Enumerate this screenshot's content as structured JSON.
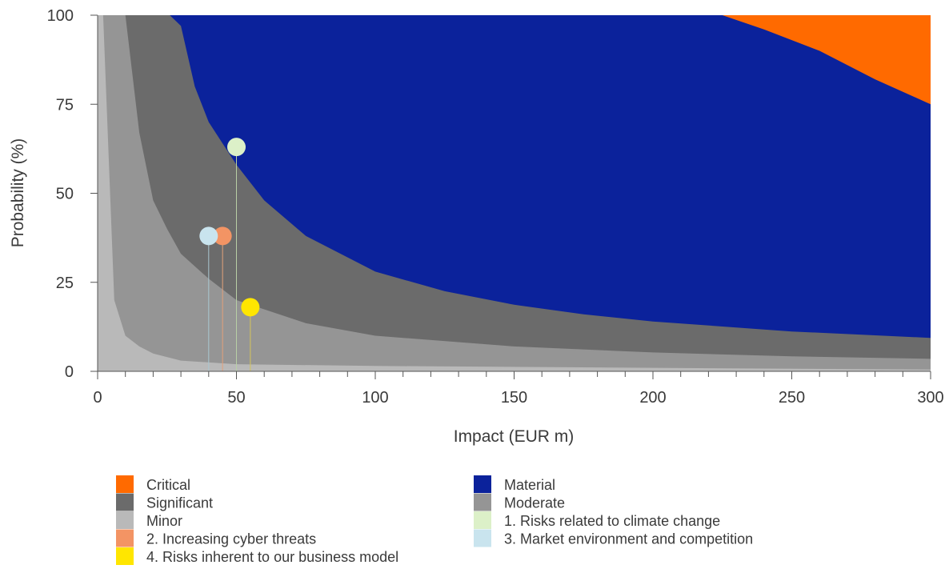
{
  "chart_data": {
    "type": "area",
    "title": "",
    "xlabel": "Impact (EUR m)",
    "ylabel": "Probability (%)",
    "xlim": [
      0,
      300
    ],
    "ylim": [
      0,
      100
    ],
    "x_ticks": [
      "0",
      "50",
      "100",
      "150",
      "200",
      "250",
      "300"
    ],
    "y_ticks": [
      "0",
      "25",
      "50",
      "75",
      "100"
    ],
    "x_minor_step": 10,
    "grid": false,
    "legend_position": "bottom",
    "zones": [
      {
        "name": "Minor",
        "color": "#b9b9b9"
      },
      {
        "name": "Moderate",
        "color": "#959595"
      },
      {
        "name": "Significant",
        "color": "#6b6b6b"
      },
      {
        "name": "Material",
        "color": "#0b229b"
      },
      {
        "name": "Critical",
        "color": "#ff6a00"
      }
    ],
    "boundaries": [
      {
        "between": [
          "Minor",
          "Moderate"
        ],
        "points": [
          [
            0,
            100
          ],
          [
            2,
            100
          ],
          [
            6,
            20
          ],
          [
            10,
            10
          ],
          [
            15,
            7
          ],
          [
            20,
            5
          ],
          [
            30,
            3
          ],
          [
            50,
            2
          ],
          [
            100,
            1.5
          ],
          [
            200,
            1
          ],
          [
            300,
            0.5
          ]
        ]
      },
      {
        "between": [
          "Moderate",
          "Significant"
        ],
        "points": [
          [
            0,
            100
          ],
          [
            10,
            100
          ],
          [
            15,
            67
          ],
          [
            20,
            48
          ],
          [
            25,
            40
          ],
          [
            30,
            33
          ],
          [
            40,
            26
          ],
          [
            50,
            20
          ],
          [
            75,
            13.5
          ],
          [
            100,
            10
          ],
          [
            150,
            7
          ],
          [
            200,
            5.3
          ],
          [
            250,
            4.2
          ],
          [
            300,
            3.5
          ]
        ]
      },
      {
        "between": [
          "Significant",
          "Material"
        ],
        "points": [
          [
            26,
            100
          ],
          [
            30,
            97
          ],
          [
            35,
            80
          ],
          [
            40,
            70
          ],
          [
            50,
            58
          ],
          [
            60,
            48
          ],
          [
            75,
            38
          ],
          [
            100,
            28
          ],
          [
            125,
            22.5
          ],
          [
            150,
            18.7
          ],
          [
            175,
            16
          ],
          [
            200,
            14
          ],
          [
            250,
            11.2
          ],
          [
            300,
            9.4
          ]
        ]
      },
      {
        "between": [
          "Material",
          "Critical"
        ],
        "points": [
          [
            225,
            100
          ],
          [
            240,
            96
          ],
          [
            260,
            90
          ],
          [
            280,
            82
          ],
          [
            300,
            75
          ]
        ]
      }
    ],
    "risk_points": [
      {
        "name": "1. Risks related to climate change",
        "x": 50,
        "y": 63,
        "color": "#dcf0c8",
        "stem_color": "#b8cfa5"
      },
      {
        "name": "2. Increasing cyber threats",
        "x": 45,
        "y": 38,
        "color": "#f39464",
        "stem_color": "#e3a07a"
      },
      {
        "name": "3. Market environment and competition",
        "x": 40,
        "y": 38,
        "color": "#c9e4ee",
        "stem_color": "#a9c6d1"
      },
      {
        "name": "4. Risks inherent to our business model",
        "x": 55,
        "y": 18,
        "color": "#ffe600",
        "stem_color": "#d4c45a"
      }
    ],
    "legend": [
      {
        "label": "Critical",
        "color": "#ff6a00",
        "column": 0
      },
      {
        "label": "Material",
        "color": "#0b229b",
        "column": 1
      },
      {
        "label": "Significant",
        "color": "#6b6b6b",
        "column": 0
      },
      {
        "label": "Moderate",
        "color": "#959595",
        "column": 1
      },
      {
        "label": "Minor",
        "color": "#b9b9b9",
        "column": 0
      },
      {
        "label": "1. Risks related to climate change",
        "color": "#dcf0c8",
        "column": 1
      },
      {
        "label": "2. Increasing cyber threats",
        "color": "#f39464",
        "column": 0
      },
      {
        "label": "3. Market environment and competition",
        "color": "#c9e4ee",
        "column": 1
      },
      {
        "label": "4. Risks inherent to our business model",
        "color": "#ffe600",
        "column": 0
      }
    ]
  }
}
